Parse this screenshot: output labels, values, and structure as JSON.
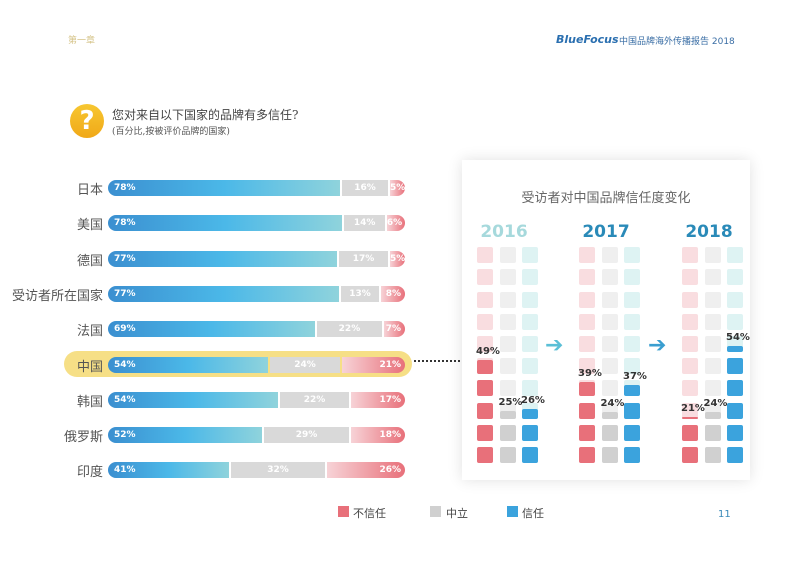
{
  "header": {
    "chapter": "第一章",
    "brand": "BlueFocus",
    "report_title": "中国品牌海外传播报告 2018"
  },
  "question": {
    "icon": "question-icon",
    "symbol": "?",
    "title": "您对来自以下国家的品牌有多信任?",
    "subtitle": "(百分比,按被评价品牌的国家)"
  },
  "chart_data": [
    {
      "type": "bar",
      "stacked": true,
      "orientation": "horizontal",
      "series_names": [
        "信任",
        "中立",
        "不信任"
      ],
      "categories": [
        "日本",
        "美国",
        "德国",
        "受访者所在国家",
        "法国",
        "中国",
        "韩国",
        "俄罗斯",
        "印度"
      ],
      "series": [
        {
          "name": "信任",
          "color": "#4bb8e8",
          "values": [
            78,
            78,
            77,
            77,
            69,
            54,
            54,
            52,
            41
          ]
        },
        {
          "name": "中立",
          "color": "#d9d9d9",
          "values": [
            16,
            14,
            17,
            13,
            22,
            24,
            22,
            29,
            32
          ]
        },
        {
          "name": "不信任",
          "color": "#e8707a",
          "values": [
            5,
            6,
            5,
            8,
            7,
            21,
            17,
            18,
            26
          ]
        }
      ],
      "highlight": "中国",
      "value_suffix": "%"
    },
    {
      "type": "bar",
      "title": "受访者对中国品牌信任度变化",
      "categories": [
        "2016",
        "2017",
        "2018"
      ],
      "series": [
        {
          "name": "不信任",
          "values": [
            49,
            39,
            21
          ]
        },
        {
          "name": "中立",
          "values": [
            25,
            24,
            24
          ]
        },
        {
          "name": "信任",
          "values": [
            26,
            37,
            54
          ]
        }
      ],
      "ylim": [
        0,
        100
      ],
      "value_suffix": "%"
    }
  ],
  "legend": [
    {
      "label": "不信任",
      "color": "#e8707a"
    },
    {
      "label": "中立",
      "color": "#d0d0d0"
    },
    {
      "label": "信任",
      "color": "#3ba3dd"
    }
  ],
  "year_colors": [
    "#a6d9dc",
    "#2a8ab8",
    "#2a8ab8"
  ],
  "page_number": "11"
}
